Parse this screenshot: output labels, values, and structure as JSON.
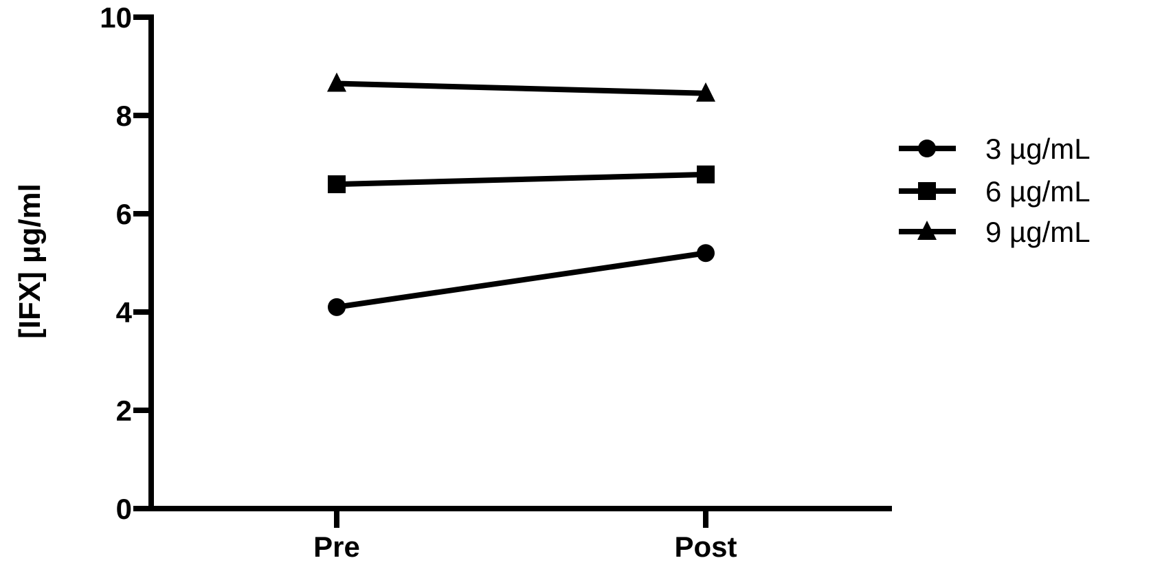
{
  "chart_data": {
    "type": "line",
    "title": "",
    "xlabel": "",
    "ylabel": "[IFX] µg/ml",
    "categories": [
      "Pre",
      "Post"
    ],
    "ylim": [
      0,
      10
    ],
    "yticks": [
      "0",
      "2",
      "4",
      "6",
      "8",
      "10"
    ],
    "grid": false,
    "legend_position": "right",
    "series": [
      {
        "name": "3 µg/mL",
        "marker": "circle",
        "values": [
          4.1,
          5.2
        ]
      },
      {
        "name": "6 µg/mL",
        "marker": "square",
        "values": [
          6.6,
          6.8
        ]
      },
      {
        "name": "9 µg/mL",
        "marker": "triangle",
        "values": [
          8.65,
          8.45
        ]
      }
    ],
    "color": "#000000"
  }
}
